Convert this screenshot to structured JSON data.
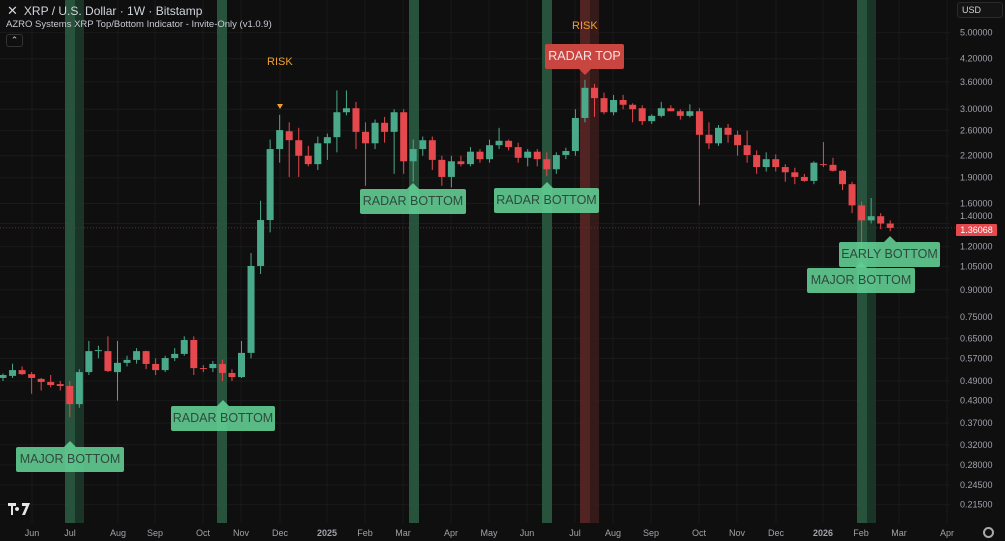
{
  "header": {
    "close_icon": "close-icon",
    "title": "XRP / U.S. Dollar · 1W · Bitstamp",
    "indicator": "AZRO Systems XRP Top/Bottom Indicator - Invite-Only (v1.0.9)",
    "collapse_icon": "chevron-up-icon"
  },
  "currency": "USD",
  "price_axis": {
    "scale": "log",
    "ticks": [
      "5.00000",
      "4.20000",
      "3.60000",
      "3.00000",
      "2.60000",
      "2.20000",
      "1.90000",
      "1.60000",
      "1.40000",
      "1.20000",
      "1.05000",
      "0.90000",
      "0.75000",
      "0.65000",
      "0.57000",
      "0.49000",
      "0.43000",
      "0.37000",
      "0.32000",
      "0.28000",
      "0.24500",
      "0.21500"
    ],
    "last_price": "1.36068"
  },
  "time_axis": {
    "ticks": [
      "Jun",
      "Jul",
      "Aug",
      "Sep",
      "Oct",
      "Nov",
      "Dec",
      "2025",
      "Feb",
      "Mar",
      "Apr",
      "May",
      "Jun",
      "Jul",
      "Aug",
      "Sep",
      "Oct",
      "Nov",
      "Dec",
      "2026",
      "Feb",
      "Mar",
      "Apr"
    ]
  },
  "colors": {
    "up": "#4aa98a",
    "down": "#e5484d",
    "bottom_band": "#2a5a40",
    "top_band": "#5a2626",
    "label_green": "#62cd93",
    "label_red": "#c9453f",
    "risk": "#f0a030",
    "background": "#0f0f0f"
  },
  "signals": {
    "labels": [
      "MAJOR BOTTOM",
      "RADAR BOTTOM",
      "RADAR BOTTOM",
      "RADAR BOTTOM",
      "RADAR TOP",
      "EARLY BOTTOM",
      "MAJOR BOTTOM"
    ],
    "risk": [
      "RISK",
      "RISK"
    ]
  },
  "logo": "TV",
  "chart_data": {
    "type": "candlestick",
    "interval": "1W",
    "yscale": "log",
    "ohlc": [
      [
        0.5,
        0.515,
        0.49,
        0.51
      ],
      [
        0.507,
        0.55,
        0.5,
        0.527
      ],
      [
        0.527,
        0.54,
        0.51,
        0.513
      ],
      [
        0.513,
        0.52,
        0.45,
        0.5
      ],
      [
        0.497,
        0.5,
        0.46,
        0.487
      ],
      [
        0.487,
        0.51,
        0.47,
        0.477
      ],
      [
        0.48,
        0.49,
        0.46,
        0.474
      ],
      [
        0.474,
        0.49,
        0.385,
        0.42
      ],
      [
        0.42,
        0.53,
        0.41,
        0.52
      ],
      [
        0.52,
        0.64,
        0.51,
        0.598
      ],
      [
        0.598,
        0.62,
        0.57,
        0.602
      ],
      [
        0.598,
        0.66,
        0.52,
        0.524
      ],
      [
        0.52,
        0.64,
        0.43,
        0.553
      ],
      [
        0.553,
        0.58,
        0.54,
        0.564
      ],
      [
        0.564,
        0.61,
        0.55,
        0.598
      ],
      [
        0.598,
        0.6,
        0.53,
        0.549
      ],
      [
        0.549,
        0.57,
        0.51,
        0.527
      ],
      [
        0.527,
        0.58,
        0.52,
        0.571
      ],
      [
        0.571,
        0.61,
        0.56,
        0.587
      ],
      [
        0.587,
        0.66,
        0.58,
        0.644
      ],
      [
        0.644,
        0.66,
        0.51,
        0.534
      ],
      [
        0.534,
        0.545,
        0.52,
        0.531
      ],
      [
        0.534,
        0.56,
        0.52,
        0.549
      ],
      [
        0.549,
        0.565,
        0.49,
        0.517
      ],
      [
        0.517,
        0.53,
        0.49,
        0.503
      ],
      [
        0.503,
        0.64,
        0.5,
        0.591
      ],
      [
        0.591,
        1.15,
        0.57,
        1.055
      ],
      [
        1.055,
        1.63,
        1.0,
        1.433
      ],
      [
        1.433,
        2.45,
        1.32,
        2.3
      ],
      [
        2.3,
        2.89,
        2.1,
        2.61
      ],
      [
        2.59,
        2.75,
        1.91,
        2.44
      ],
      [
        2.44,
        2.65,
        1.91,
        2.2
      ],
      [
        2.2,
        2.35,
        2.05,
        2.08
      ],
      [
        2.08,
        2.5,
        2.0,
        2.39
      ],
      [
        2.39,
        2.55,
        2.14,
        2.49
      ],
      [
        2.49,
        3.4,
        2.25,
        2.94
      ],
      [
        2.94,
        3.4,
        2.88,
        3.02
      ],
      [
        3.02,
        3.15,
        2.3,
        2.58
      ],
      [
        2.58,
        2.75,
        1.8,
        2.39
      ],
      [
        2.39,
        2.8,
        2.3,
        2.74
      ],
      [
        2.74,
        2.85,
        2.4,
        2.58
      ],
      [
        2.58,
        3.0,
        1.95,
        2.94
      ],
      [
        2.94,
        3.0,
        1.95,
        2.12
      ],
      [
        2.12,
        2.45,
        1.85,
        2.3
      ],
      [
        2.3,
        2.5,
        2.2,
        2.44
      ],
      [
        2.44,
        2.5,
        2.0,
        2.14
      ],
      [
        2.14,
        2.2,
        1.8,
        1.91
      ],
      [
        1.91,
        2.2,
        1.78,
        2.12
      ],
      [
        2.12,
        2.2,
        2.05,
        2.08
      ],
      [
        2.08,
        2.33,
        2.05,
        2.26
      ],
      [
        2.26,
        2.3,
        2.1,
        2.15
      ],
      [
        2.15,
        2.45,
        2.1,
        2.36
      ],
      [
        2.36,
        2.65,
        2.3,
        2.43
      ],
      [
        2.43,
        2.45,
        2.28,
        2.33
      ],
      [
        2.33,
        2.4,
        2.1,
        2.17
      ],
      [
        2.17,
        2.3,
        2.05,
        2.26
      ],
      [
        2.26,
        2.3,
        2.05,
        2.15
      ],
      [
        2.15,
        2.25,
        1.92,
        2.01
      ],
      [
        2.01,
        2.25,
        1.95,
        2.21
      ],
      [
        2.21,
        2.32,
        2.15,
        2.27
      ],
      [
        2.27,
        3.0,
        2.2,
        2.83
      ],
      [
        2.83,
        3.65,
        2.75,
        3.46
      ],
      [
        3.46,
        3.55,
        2.85,
        3.23
      ],
      [
        3.23,
        3.35,
        2.9,
        2.94
      ],
      [
        2.94,
        3.3,
        2.88,
        3.19
      ],
      [
        3.19,
        3.3,
        3.0,
        3.09
      ],
      [
        3.09,
        3.12,
        2.75,
        3.0
      ],
      [
        3.02,
        3.08,
        2.7,
        2.77
      ],
      [
        2.77,
        2.9,
        2.72,
        2.87
      ],
      [
        2.87,
        3.15,
        2.84,
        3.02
      ],
      [
        3.02,
        3.08,
        2.96,
        2.96
      ],
      [
        2.96,
        3.0,
        2.8,
        2.87
      ],
      [
        2.87,
        3.1,
        2.84,
        2.96
      ],
      [
        2.96,
        3.02,
        1.58,
        2.53
      ],
      [
        2.53,
        2.75,
        2.3,
        2.39
      ],
      [
        2.39,
        2.7,
        2.35,
        2.65
      ],
      [
        2.65,
        2.72,
        2.4,
        2.53
      ],
      [
        2.53,
        2.6,
        2.2,
        2.36
      ],
      [
        2.36,
        2.6,
        2.1,
        2.21
      ],
      [
        2.21,
        2.28,
        1.95,
        2.04
      ],
      [
        2.04,
        2.25,
        1.98,
        2.15
      ],
      [
        2.15,
        2.22,
        1.98,
        2.04
      ],
      [
        2.04,
        2.08,
        1.85,
        1.97
      ],
      [
        1.97,
        2.03,
        1.82,
        1.91
      ],
      [
        1.91,
        1.95,
        1.85,
        1.86
      ],
      [
        1.86,
        2.12,
        1.82,
        2.1
      ],
      [
        2.08,
        2.41,
        2.04,
        2.07
      ],
      [
        2.07,
        2.17,
        1.98,
        1.99
      ],
      [
        1.99,
        2.0,
        1.75,
        1.82
      ],
      [
        1.82,
        1.85,
        1.5,
        1.58
      ],
      [
        1.58,
        1.62,
        1.12,
        1.43
      ],
      [
        1.43,
        1.66,
        1.4,
        1.47
      ],
      [
        1.47,
        1.5,
        1.35,
        1.4
      ],
      [
        1.4,
        1.43,
        1.33,
        1.36
      ]
    ]
  }
}
